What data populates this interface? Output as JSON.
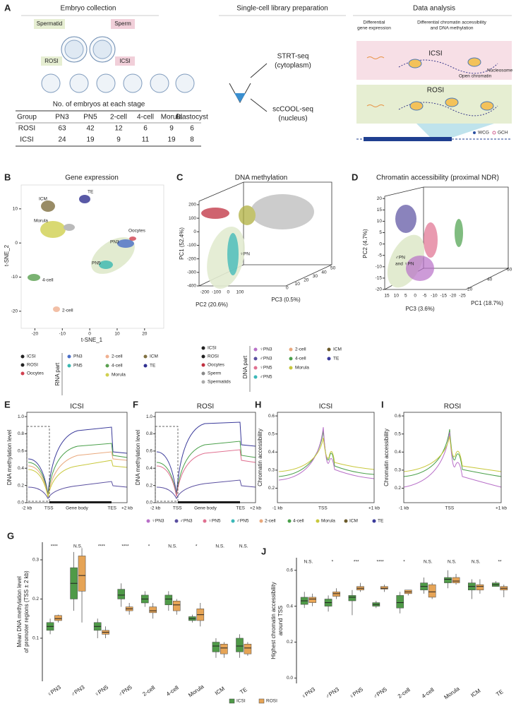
{
  "panelA": {
    "letter": "A",
    "sections": [
      "Embryo collection",
      "Single-cell library preparation",
      "Data analysis"
    ],
    "labels": {
      "spermatid": "Spermatid",
      "sperm": "Sperm",
      "rosi": "ROSI",
      "icsi": "ICSI",
      "strt": "STRT-seq",
      "strt_sub": "(cytoplasm)",
      "cool": "scCOOL-seq",
      "cool_sub": "(nucleus)",
      "dge": [
        "Differential",
        "gene expression"
      ],
      "dca": [
        "Differential chromatin accessibility",
        "and DNA methylation"
      ],
      "icsi2": "ICSI",
      "rosi2": "ROSI",
      "nucleosome": "Nucleosome",
      "open": "Open chromatin",
      "wcg": "WCG",
      "gch": "GCH"
    },
    "table": {
      "caption": "No. of embryos at each stage",
      "header": [
        "Group",
        "PN3",
        "PN5",
        "2-cell",
        "4-cell",
        "Morula",
        "Blastocyst"
      ],
      "rows": [
        [
          "ROSI",
          63,
          42,
          12,
          6,
          9,
          6
        ],
        [
          "ICSI",
          24,
          19,
          9,
          11,
          19,
          8
        ]
      ]
    }
  },
  "panelB": {
    "letter": "B",
    "title": "Gene expression",
    "xlabel": "t-SNE_1",
    "ylabel": "t-SNE_2",
    "xlim": [
      -25,
      27
    ],
    "ylim": [
      -25,
      17
    ],
    "xticks": [
      -20,
      -10,
      0,
      10,
      20
    ],
    "yticks": [
      10,
      0,
      -10,
      -20
    ],
    "annotations": [
      "TE",
      "ICM",
      "Morula",
      "Oocytes",
      "PN3",
      "PN5",
      "4-cell",
      "2-cell"
    ]
  },
  "panelC": {
    "letter": "C",
    "title": "DNA methylation",
    "ylabel": "PC1 (52.4%)",
    "xlabel": "PC2 (20.6%)",
    "zlabel": "PC3 (0.5%)",
    "ylim": [
      -400,
      210
    ],
    "yticks": [
      200,
      100,
      0,
      -100,
      -200,
      -300,
      -400
    ],
    "xticks": [
      -200,
      -100,
      0,
      100
    ],
    "zticks": [
      0,
      10,
      20,
      30,
      40,
      50
    ],
    "annotation": "♀PN"
  },
  "panelD": {
    "letter": "D",
    "title": "Chromatin accessibility (proximal NDR)",
    "ylabel": "PC2 (4.7%)",
    "xlabel": "PC3 (3.6%)",
    "zlabel": "PC1 (18.7%)",
    "ylim": [
      -20,
      21
    ],
    "yticks": [
      20,
      15,
      10,
      5,
      0,
      -5,
      -10,
      -15,
      -20
    ],
    "xticks": [
      15,
      10,
      5,
      0,
      -5,
      -10,
      -15,
      -20,
      -25
    ],
    "zticks": [
      20,
      40,
      60
    ],
    "annotation": [
      "♂PN",
      "and ♀PN"
    ]
  },
  "rna_legend": {
    "shapes": [
      "ICSI",
      "ROSI",
      "Oocytes"
    ],
    "title": "RNA part",
    "stages": [
      "PN3",
      "PN5",
      "2-cell",
      "4-cell",
      "Morula",
      "ICM",
      "TE"
    ],
    "colors": [
      "#4a6fc8",
      "#3ab8b0",
      "#f0b090",
      "#5aa050",
      "#d0d050",
      "#807040",
      "#303090"
    ]
  },
  "dna_legend": {
    "shapes": [
      "ICSI",
      "ROSI",
      "Oocytes",
      "Sperm",
      "Spermatids"
    ],
    "title": "DNA part",
    "stages": [
      "♀PN3",
      "♂PN3",
      "♀PN5",
      "♂PN5",
      "2-cell",
      "4-cell",
      "Morula",
      "ICM",
      "TE"
    ],
    "colors": [
      "#b870c8",
      "#5a4fa0",
      "#e07090",
      "#3bb8b8",
      "#e9a87c",
      "#4aa04a",
      "#c8c83c",
      "#6b5a2a",
      "#3a3a9a"
    ]
  },
  "lines": {
    "meth_ylabel": "DNA methylation level",
    "acc_ylabel": "Chromatin accessibility",
    "meth_yticks": [
      {
        "value": 0,
        "label": "0.0"
      },
      0.2,
      0.4,
      0.6,
      0.8,
      {
        "value": 1,
        "label": "1.0"
      }
    ],
    "meth_ylim": [
      0,
      1.05
    ],
    "acc_yticks": [
      0.2,
      0.3,
      0.4,
      0.5,
      0.6
    ],
    "acc_ylim": [
      0.12,
      0.62
    ],
    "meth_xlabels": [
      "-2 kb",
      "TSS",
      "Gene body",
      "TES",
      "+2 kb"
    ],
    "acc_xlabels": [
      "-1 kb",
      "TSS",
      "+1 kb"
    ],
    "panels": [
      {
        "letter": "E",
        "title": "ICSI"
      },
      {
        "letter": "F",
        "title": "ROSI"
      },
      {
        "letter": "H",
        "title": "ICSI"
      },
      {
        "letter": "I",
        "title": "ROSI"
      }
    ]
  },
  "chart_data": [
    {
      "type": "box",
      "letter": "G",
      "ylabel": [
        "Mean DNA methylation level",
        "of promoter regions (TSS ± 2 kb)"
      ],
      "categories": [
        "♀PN3",
        "♂PN3",
        "♀PN5",
        "♂PN5",
        "2-cell",
        "4-cell",
        "Morula",
        "ICM",
        "TE"
      ],
      "significance": [
        "****",
        "N.S.",
        "****",
        "****",
        "*",
        "N.S.",
        "*",
        "N.S.",
        "N.S."
      ],
      "ylim": [
        -0.01,
        0.345
      ],
      "yticks": [
        0.1,
        0.2,
        0.3
      ],
      "series": [
        {
          "name": "ICSI",
          "color": "#4f9a48",
          "whislo": [
            0.11,
            0.17,
            0.1,
            0.18,
            0.18,
            0.17,
            0.14,
            0.05,
            0.05
          ],
          "q1": [
            0.12,
            0.2,
            0.12,
            0.2,
            0.19,
            0.185,
            0.145,
            0.065,
            0.065
          ],
          "median": [
            0.13,
            0.24,
            0.13,
            0.21,
            0.2,
            0.2,
            0.15,
            0.08,
            0.08
          ],
          "q3": [
            0.14,
            0.28,
            0.14,
            0.225,
            0.21,
            0.21,
            0.155,
            0.09,
            0.1
          ],
          "whishi": [
            0.15,
            0.32,
            0.15,
            0.24,
            0.22,
            0.22,
            0.16,
            0.1,
            0.11
          ]
        },
        {
          "name": "ROSI",
          "color": "#e6a456",
          "whislo": [
            0.14,
            0.14,
            0.1,
            0.16,
            0.15,
            0.16,
            0.13,
            0.05,
            0.055
          ],
          "q1": [
            0.145,
            0.22,
            0.11,
            0.17,
            0.165,
            0.17,
            0.145,
            0.06,
            0.06
          ],
          "median": [
            0.15,
            0.26,
            0.115,
            0.175,
            0.17,
            0.185,
            0.16,
            0.075,
            0.075
          ],
          "q3": [
            0.158,
            0.31,
            0.12,
            0.18,
            0.18,
            0.195,
            0.175,
            0.085,
            0.085
          ],
          "whishi": [
            0.16,
            0.33,
            0.13,
            0.19,
            0.19,
            0.2,
            0.19,
            0.09,
            0.09
          ]
        }
      ]
    },
    {
      "type": "box",
      "letter": "J",
      "ylabel": [
        "Highest chromatin accessibility",
        "around TSS"
      ],
      "categories": [
        "♀PN3",
        "♂PN3",
        "♀PN5",
        "♂PN5",
        "2-cell",
        "4-cell",
        "Morula",
        "ICM",
        "TE"
      ],
      "significance": [
        "N.S.",
        "*",
        "***",
        "****",
        "*",
        "N.S.",
        "N.S.",
        "N.S.",
        "**"
      ],
      "ylim": [
        -0.03,
        0.67
      ],
      "yticks": [
        {
          "value": 0,
          "label": "0.0"
        },
        0.2,
        0.4,
        0.6
      ],
      "series": [
        {
          "name": "ICSI",
          "color": "#4f9a48",
          "whislo": [
            0.39,
            0.37,
            0.35,
            0.39,
            0.36,
            0.47,
            0.5,
            0.44,
            0.51
          ],
          "q1": [
            0.41,
            0.4,
            0.43,
            0.4,
            0.39,
            0.49,
            0.53,
            0.49,
            0.51
          ],
          "median": [
            0.43,
            0.42,
            0.45,
            0.41,
            0.42,
            0.51,
            0.55,
            0.51,
            0.52
          ],
          "q3": [
            0.45,
            0.44,
            0.46,
            0.42,
            0.46,
            0.53,
            0.56,
            0.53,
            0.53
          ],
          "whishi": [
            0.48,
            0.46,
            0.49,
            0.43,
            0.48,
            0.56,
            0.6,
            0.55,
            0.54
          ]
        },
        {
          "name": "ROSI",
          "color": "#e6a456",
          "whislo": [
            0.4,
            0.44,
            0.48,
            0.48,
            0.46,
            0.44,
            0.52,
            0.47,
            0.45
          ],
          "q1": [
            0.42,
            0.455,
            0.49,
            0.495,
            0.47,
            0.45,
            0.53,
            0.49,
            0.49
          ],
          "median": [
            0.44,
            0.47,
            0.5,
            0.5,
            0.48,
            0.48,
            0.54,
            0.51,
            0.5
          ],
          "q3": [
            0.45,
            0.48,
            0.51,
            0.51,
            0.49,
            0.52,
            0.56,
            0.52,
            0.51
          ],
          "whishi": [
            0.47,
            0.5,
            0.53,
            0.52,
            0.49,
            0.53,
            0.58,
            0.55,
            0.52
          ]
        }
      ]
    }
  ]
}
